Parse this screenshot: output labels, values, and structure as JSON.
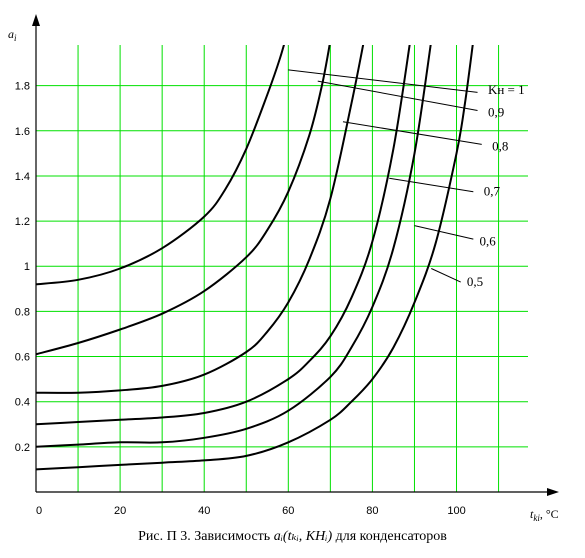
{
  "caption": {
    "prefix": "Рис. П   3.  Зависимость ",
    "math": "aᵢ(tₖᵢ, KHᵢ)",
    "suffix": "  для конденсаторов"
  },
  "chart_data": {
    "type": "line",
    "title": "",
    "xlabel": "tₖᵢ , °C",
    "ylabel": "aᵢ",
    "xlabel_main": "t",
    "xlabel_sub": "ki",
    "xlabel_unit": ", °C",
    "ylabel_main": "a",
    "ylabel_sub": "i",
    "xlim": [
      0,
      117
    ],
    "ylim": [
      0,
      1.98
    ],
    "grid": true,
    "grid_color": "#00e000",
    "line_color": "#000000",
    "x_ticks": [
      0,
      20,
      40,
      60,
      80,
      100
    ],
    "x_tick_labels": [
      "0",
      "20",
      "40",
      "60",
      "80",
      "100"
    ],
    "y_ticks": [
      0.2,
      0.4,
      0.6,
      0.8,
      1.0,
      1.2,
      1.4,
      1.6,
      1.8
    ],
    "y_tick_labels": [
      "0.2",
      "0.4",
      "0.6",
      "0.8",
      "1",
      "1.2",
      "1.4",
      "1.6",
      "1.8"
    ],
    "series": [
      {
        "name": "Kн = 1",
        "label_x": 107,
        "label_y": 1.78,
        "leader": [
          [
            60,
            1.87
          ],
          [
            105,
            1.77
          ]
        ],
        "x": [
          0,
          10,
          20,
          30,
          40,
          45,
          50,
          55,
          58,
          60
        ],
        "y": [
          0.92,
          0.94,
          0.99,
          1.08,
          1.22,
          1.34,
          1.52,
          1.76,
          1.92,
          2.05
        ]
      },
      {
        "name": "0,9",
        "label_x": 107,
        "label_y": 1.68,
        "leader": [
          [
            67,
            1.82
          ],
          [
            105,
            1.69
          ]
        ],
        "x": [
          0,
          10,
          20,
          30,
          40,
          50,
          55,
          60,
          65,
          68,
          70
        ],
        "y": [
          0.61,
          0.66,
          0.72,
          0.79,
          0.89,
          1.04,
          1.16,
          1.33,
          1.58,
          1.8,
          2.0
        ]
      },
      {
        "name": "0,8",
        "label_x": 108,
        "label_y": 1.53,
        "leader": [
          [
            73,
            1.64
          ],
          [
            106,
            1.54
          ]
        ],
        "x": [
          0,
          10,
          20,
          30,
          40,
          50,
          55,
          60,
          65,
          70,
          75,
          78
        ],
        "y": [
          0.44,
          0.44,
          0.45,
          0.47,
          0.52,
          0.62,
          0.71,
          0.84,
          1.03,
          1.3,
          1.72,
          2.0
        ]
      },
      {
        "name": "0,7",
        "label_x": 106,
        "label_y": 1.33,
        "leader": [
          [
            84,
            1.39
          ],
          [
            104,
            1.33
          ]
        ],
        "x": [
          0,
          10,
          20,
          30,
          40,
          50,
          60,
          65,
          70,
          75,
          80,
          85,
          89
        ],
        "y": [
          0.3,
          0.31,
          0.32,
          0.33,
          0.35,
          0.4,
          0.5,
          0.58,
          0.69,
          0.86,
          1.11,
          1.52,
          2.0
        ]
      },
      {
        "name": "0,6",
        "label_x": 105,
        "label_y": 1.11,
        "leader": [
          [
            90,
            1.18
          ],
          [
            104,
            1.12
          ]
        ],
        "x": [
          0,
          10,
          20,
          30,
          40,
          50,
          60,
          70,
          75,
          80,
          85,
          90,
          94
        ],
        "y": [
          0.2,
          0.21,
          0.22,
          0.22,
          0.24,
          0.28,
          0.36,
          0.51,
          0.64,
          0.82,
          1.08,
          1.5,
          2.0
        ]
      },
      {
        "name": "0,5",
        "label_x": 102,
        "label_y": 0.93,
        "leader": [
          [
            94,
            0.99
          ],
          [
            101,
            0.93
          ]
        ],
        "x": [
          0,
          10,
          20,
          30,
          40,
          50,
          60,
          70,
          75,
          80,
          85,
          90,
          95,
          100,
          102,
          104
        ],
        "y": [
          0.1,
          0.11,
          0.12,
          0.13,
          0.14,
          0.16,
          0.22,
          0.32,
          0.4,
          0.5,
          0.64,
          0.84,
          1.1,
          1.5,
          1.72,
          2.0
        ]
      }
    ]
  }
}
